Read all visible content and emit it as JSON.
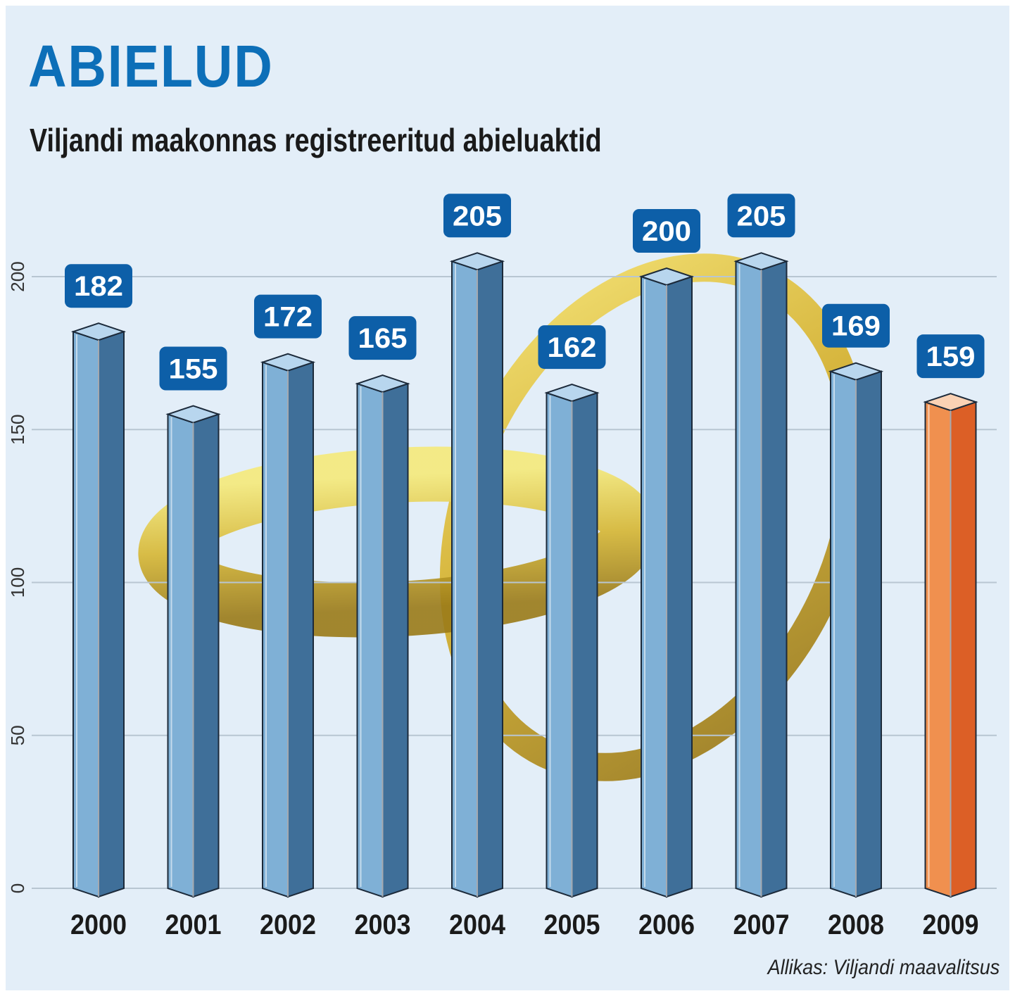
{
  "header": {
    "title": "ABIELUD",
    "subtitle": "Viljandi maakonnas registreeritud abieluaktid"
  },
  "footer": {
    "source": "Allikas: Viljandi maavalitsus"
  },
  "colors": {
    "background": "#e3eef8",
    "title": "#0d6fb8",
    "bar_front": "#7fb0d6",
    "bar_side": "#3f6f99",
    "bar_top": "#b8d6ee",
    "highlight_front": "#f0904f",
    "highlight_side": "#dc5f26",
    "highlight_top": "#fbd2b4",
    "label_box": "#0d5fa8",
    "ring_gold": "#d7b52c"
  },
  "chart_data": {
    "type": "bar",
    "title": "ABIELUD",
    "subtitle": "Viljandi maakonnas registreeritud abieluaktid",
    "categories": [
      "2000",
      "2001",
      "2002",
      "2003",
      "2004",
      "2005",
      "2006",
      "2007",
      "2008",
      "2009"
    ],
    "values": [
      182,
      155,
      172,
      165,
      205,
      162,
      200,
      205,
      169,
      159
    ],
    "value_labels": [
      "182",
      "155",
      "172",
      "165",
      "205",
      "162",
      "200",
      "205",
      "169",
      "159"
    ],
    "highlight_index": 9,
    "yticks": [
      "0",
      "50",
      "100",
      "150",
      "200"
    ],
    "ylim": [
      0,
      200
    ],
    "grid": true,
    "xlabel": "",
    "ylabel": "",
    "source": "Allikas: Viljandi maavalitsus"
  }
}
